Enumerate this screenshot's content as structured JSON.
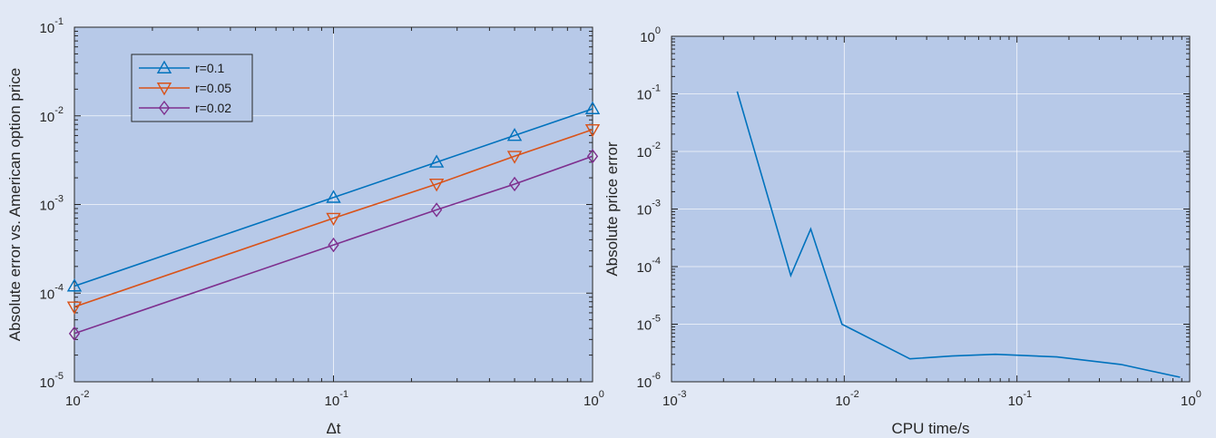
{
  "chart_data": [
    {
      "type": "line",
      "xlabel": "Δt",
      "ylabel": "Absolute error vs. American option price",
      "xscale": "log",
      "yscale": "log",
      "xlim": [
        0.01,
        1
      ],
      "ylim": [
        1e-05,
        0.1
      ],
      "xticks": [
        {
          "base": "10",
          "exp": "-2"
        },
        {
          "base": "10",
          "exp": "-1"
        },
        {
          "base": "10",
          "exp": "0"
        }
      ],
      "yticks": [
        {
          "base": "10",
          "exp": "-5"
        },
        {
          "base": "10",
          "exp": "-4"
        },
        {
          "base": "10",
          "exp": "-3"
        },
        {
          "base": "10",
          "exp": "-2"
        },
        {
          "base": "10",
          "exp": "-1"
        }
      ],
      "grid": true,
      "legend_position": "top-left",
      "series": [
        {
          "name": "r=0.1",
          "color": "#0072bd",
          "marker": "triangle-up",
          "x": [
            0.01,
            0.1,
            0.25,
            0.5,
            1
          ],
          "y": [
            0.00012,
            0.0012,
            0.003,
            0.006,
            0.012
          ]
        },
        {
          "name": "r=0.05",
          "color": "#d95319",
          "marker": "triangle-down",
          "x": [
            0.01,
            0.1,
            0.25,
            0.5,
            1
          ],
          "y": [
            7e-05,
            0.0007,
            0.0017,
            0.0035,
            0.007
          ]
        },
        {
          "name": "r=0.02",
          "color": "#7e2f8e",
          "marker": "diamond",
          "x": [
            0.01,
            0.1,
            0.25,
            0.5,
            1
          ],
          "y": [
            3.5e-05,
            0.00035,
            0.00087,
            0.0017,
            0.0035
          ]
        }
      ]
    },
    {
      "type": "line",
      "xlabel": "CPU time/s",
      "ylabel": "Absolute price error",
      "xscale": "log",
      "yscale": "log",
      "xlim": [
        0.001,
        1
      ],
      "ylim": [
        1e-06,
        1
      ],
      "xticks": [
        {
          "base": "10",
          "exp": "-3"
        },
        {
          "base": "10",
          "exp": "-2"
        },
        {
          "base": "10",
          "exp": "-1"
        },
        {
          "base": "10",
          "exp": "0"
        }
      ],
      "yticks": [
        {
          "base": "10",
          "exp": "-6"
        },
        {
          "base": "10",
          "exp": "-5"
        },
        {
          "base": "10",
          "exp": "-4"
        },
        {
          "base": "10",
          "exp": "-3"
        },
        {
          "base": "10",
          "exp": "-2"
        },
        {
          "base": "10",
          "exp": "-1"
        },
        {
          "base": "10",
          "exp": "0"
        }
      ],
      "grid": true,
      "series": [
        {
          "color": "#0072bd",
          "marker": "none",
          "x": [
            0.0024,
            0.0049,
            0.0064,
            0.0097,
            0.024,
            0.042,
            0.075,
            0.17,
            0.4,
            0.88
          ],
          "y": [
            0.11,
            7e-05,
            0.00045,
            1e-05,
            2.5e-06,
            2.8e-06,
            3e-06,
            2.7e-06,
            2e-06,
            1.2e-06
          ]
        }
      ]
    }
  ]
}
